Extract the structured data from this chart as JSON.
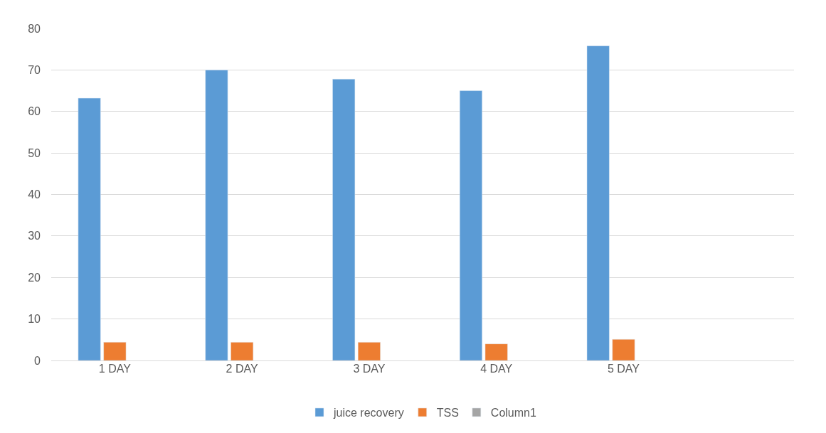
{
  "chart_data": {
    "type": "bar",
    "categories": [
      "1 DAY",
      "2 DAY",
      "3 DAY",
      "4 DAY",
      "5 DAY",
      null
    ],
    "series": [
      {
        "name": "juice recovery",
        "color": "#5b9bd5",
        "values": [
          63.2,
          70,
          67.8,
          65,
          75.8,
          null
        ]
      },
      {
        "name": "TSS",
        "color": "#ed7d31",
        "values": [
          4.4,
          4.4,
          4.4,
          4.0,
          5.1,
          null
        ]
      },
      {
        "name": "Column1",
        "color": "#a5a5a5",
        "values": [
          null,
          null,
          null,
          null,
          null,
          null
        ]
      }
    ],
    "ylim": [
      0,
      80
    ],
    "yticks": [
      0,
      10,
      20,
      30,
      40,
      50,
      60,
      70,
      80
    ],
    "grid": "y",
    "legend": "bottom"
  }
}
